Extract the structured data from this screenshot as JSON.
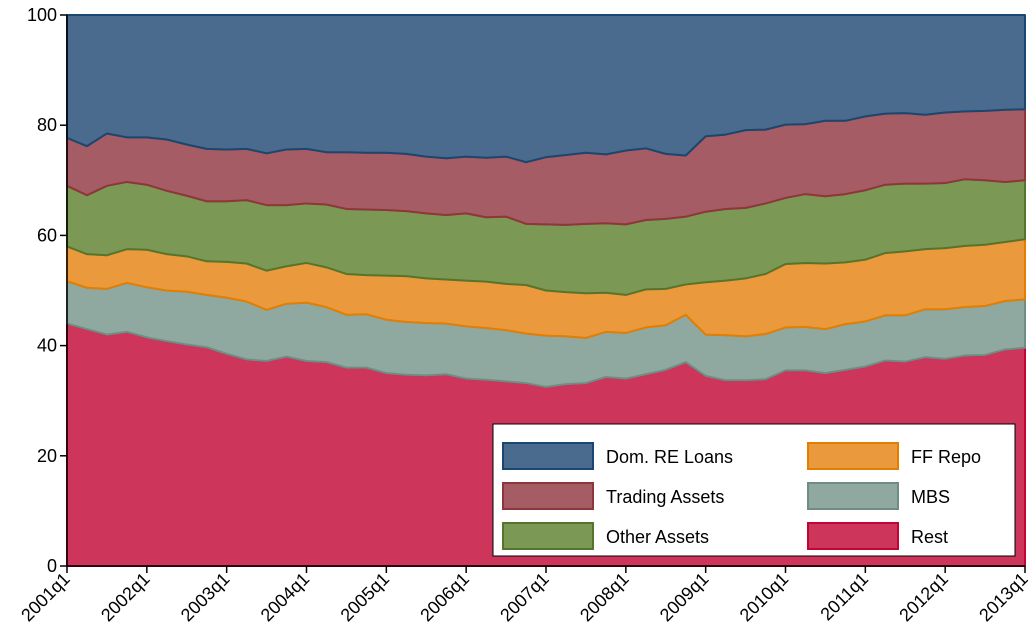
{
  "chart_data": {
    "type": "stacked-area",
    "categories": [
      "2001q1",
      null,
      null,
      null,
      "2002q1",
      null,
      null,
      null,
      "2003q1",
      null,
      null,
      null,
      "2004q1",
      null,
      null,
      null,
      "2005q1",
      null,
      null,
      null,
      "2006q1",
      null,
      null,
      null,
      "2007q1",
      null,
      null,
      null,
      "2008q1",
      null,
      null,
      null,
      "2009q1",
      null,
      null,
      null,
      "2010q1",
      null,
      null,
      null,
      "2011q1",
      null,
      null,
      null,
      "2012q1",
      null,
      null,
      null,
      "2013q1"
    ],
    "series": [
      {
        "name": "Dom. RE Loans",
        "color": "#4a6b8e",
        "stroke": "#1a476f",
        "values": [
          22.3,
          23.8,
          21.5,
          22.2,
          22.2,
          22.6,
          23.5,
          24.3,
          24.4,
          24.3,
          25.1,
          24.4,
          24.3,
          24.9,
          24.9,
          25,
          25,
          25.2,
          25.7,
          26,
          25.7,
          25.9,
          25.7,
          26.7,
          25.8,
          25.4,
          25,
          25.3,
          24.6,
          24.2,
          25.2,
          25.5,
          22,
          21.7,
          20.9,
          20.8,
          19.9,
          19.8,
          19.2,
          19.2,
          18.4,
          17.9,
          17.8,
          18.1,
          17.7,
          17.5,
          17.4,
          17.2,
          17.1
        ]
      },
      {
        "name": "Trading Assets",
        "color": "#a65c64",
        "stroke": "#90353b",
        "values": [
          8.7,
          8.9,
          9.5,
          8.1,
          8.6,
          9.3,
          9.3,
          9.5,
          9.4,
          9.3,
          9.4,
          10.1,
          9.9,
          9.5,
          10.3,
          10.3,
          10.4,
          10.4,
          10.3,
          10.3,
          10.3,
          10.8,
          10.9,
          11.2,
          12.2,
          12.7,
          12.9,
          12.5,
          13.4,
          13,
          11.8,
          11.1,
          13.7,
          13.5,
          14.1,
          13.4,
          13.3,
          12.7,
          13.7,
          13.3,
          13.4,
          12.9,
          12.8,
          12.5,
          12.8,
          12.3,
          12.6,
          13.1,
          12.9
        ]
      },
      {
        "name": "Other Assets",
        "color": "#7b9955",
        "stroke": "#55752f",
        "values": [
          11,
          10.7,
          12.6,
          12.2,
          11.8,
          11.5,
          11,
          10.9,
          11,
          11.5,
          11.9,
          11.1,
          10.8,
          11.4,
          11.8,
          11.9,
          11.9,
          11.8,
          11.8,
          11.7,
          12.2,
          11.7,
          12.2,
          11.1,
          12,
          12.2,
          12.6,
          12.6,
          12.8,
          12.6,
          12.7,
          12.3,
          12.8,
          13,
          12.8,
          12.8,
          12,
          12.5,
          12.2,
          12.4,
          12.6,
          12.4,
          12.3,
          11.9,
          11.8,
          12.1,
          11.7,
          10.9,
          10.7
        ]
      },
      {
        "name": "FF Repo",
        "color": "#ea9a3c",
        "stroke": "#e37e00",
        "values": [
          6.3,
          6.1,
          6.1,
          6.1,
          6.8,
          6.6,
          6.4,
          6.1,
          6.5,
          6.9,
          7.1,
          6.8,
          7.2,
          7.2,
          7.4,
          7.1,
          8,
          8.3,
          8.1,
          8,
          8.3,
          8.4,
          8.4,
          8.8,
          8.2,
          8,
          8.1,
          7.1,
          6.9,
          6.9,
          6.6,
          5.5,
          9.5,
          9.9,
          10.5,
          10.9,
          11.5,
          11.6,
          11.9,
          11.2,
          11.2,
          11.3,
          11.6,
          10.9,
          11.1,
          11.1,
          11.1,
          10.7,
          10.9
        ]
      },
      {
        "name": "MBS",
        "color": "#90a9a0",
        "stroke": "#6e8e84",
        "values": [
          7.7,
          7.5,
          8.3,
          8.9,
          9.1,
          9.2,
          9.6,
          9.5,
          10.2,
          10.5,
          9.3,
          9.6,
          10.6,
          10,
          9.6,
          9.7,
          9.7,
          9.6,
          9.5,
          9.2,
          9.5,
          9.4,
          9.3,
          9,
          9.3,
          8.7,
          8.2,
          8.2,
          8.3,
          8.5,
          8.1,
          8.6,
          7.5,
          8.2,
          8,
          8.2,
          7.8,
          7.9,
          8,
          8.3,
          8.2,
          8.2,
          8.4,
          8.7,
          9,
          8.8,
          8.9,
          8.8,
          8.8
        ]
      },
      {
        "name": "Rest",
        "color": "#cd355b",
        "stroke": "#c10534",
        "values": [
          44,
          43,
          42,
          42.5,
          41.5,
          40.8,
          40.2,
          39.7,
          38.5,
          37.5,
          37.2,
          38,
          37.2,
          37,
          36,
          36,
          35,
          34.7,
          34.6,
          34.8,
          34,
          33.8,
          33.5,
          33.2,
          32.5,
          33,
          33.2,
          34.3,
          34,
          34.8,
          35.6,
          37,
          34.5,
          33.7,
          33.7,
          33.9,
          35.5,
          35.5,
          35,
          35.6,
          36.2,
          37.3,
          37.1,
          37.9,
          37.6,
          38.2,
          38.3,
          39.3,
          39.6
        ]
      }
    ],
    "ylim": [
      0,
      100
    ],
    "yticks": [
      0,
      20,
      40,
      60,
      80,
      100
    ],
    "legend": "bottom-right"
  }
}
